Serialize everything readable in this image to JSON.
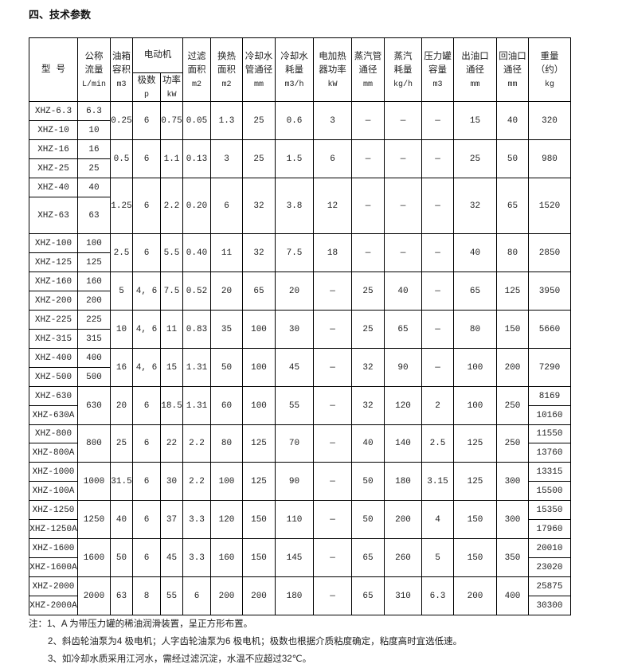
{
  "title": "四、技术参数",
  "headers": {
    "model": "型 号",
    "flow": [
      "公称",
      "流量",
      "L/min"
    ],
    "tank": [
      "油箱",
      "容积",
      "m3"
    ],
    "motor": "电动机",
    "poles": [
      "极数",
      "p"
    ],
    "power": [
      "功率",
      "kW"
    ],
    "filter": [
      "过滤",
      "面积",
      "m2"
    ],
    "heat": [
      "换热",
      "面积",
      "m2"
    ],
    "pipe": [
      "冷却水",
      "管通径",
      "mm"
    ],
    "water": [
      "冷却水",
      "耗量",
      "m3/h"
    ],
    "heater": [
      "电加热",
      "器功率",
      "kW"
    ],
    "steampipe": [
      "蒸汽管",
      "通径",
      "mm"
    ],
    "steam": [
      "蒸汽",
      "耗量",
      "kg/h"
    ],
    "tankp": [
      "压力罐",
      "容量",
      "m3"
    ],
    "outlet": [
      "出油口",
      "通径",
      "mm"
    ],
    "ret": [
      "回油口",
      "通径",
      "mm"
    ],
    "weight": [
      "重量",
      "（约）",
      "kg"
    ]
  },
  "groups": [
    {
      "models": [
        "XHZ-6.3",
        "XHZ-10"
      ],
      "flows": [
        "6.3",
        "10"
      ],
      "shared": [
        "0.25",
        "6",
        "0.75",
        "0.05",
        "1.3",
        "25",
        "0.6",
        "3",
        "—",
        "—",
        "—",
        "15",
        "40"
      ],
      "weights": [
        "320"
      ]
    },
    {
      "models": [
        "XHZ-16",
        "XHZ-25"
      ],
      "flows": [
        "16",
        "25"
      ],
      "shared": [
        "0.5",
        "6",
        "1.1",
        "0.13",
        "3",
        "25",
        "1.5",
        "6",
        "—",
        "—",
        "—",
        "25",
        "50"
      ],
      "weights": [
        "980"
      ]
    },
    {
      "models": [
        "XHZ-40",
        "XHZ-63"
      ],
      "flows": [
        "40",
        "63"
      ],
      "shared": [
        "1.25",
        "6",
        "2.2",
        "0.20",
        "6",
        "32",
        "3.8",
        "12",
        "—",
        "—",
        "—",
        "32",
        "65"
      ],
      "weights": [
        "1520"
      ]
    },
    {
      "models": [
        "XHZ-100",
        "XHZ-125"
      ],
      "flows": [
        "100",
        "125"
      ],
      "shared": [
        "2.5",
        "6",
        "5.5",
        "0.40",
        "11",
        "32",
        "7.5",
        "18",
        "—",
        "—",
        "—",
        "40",
        "80"
      ],
      "weights": [
        "2850"
      ]
    },
    {
      "models": [
        "XHZ-160",
        "XHZ-200"
      ],
      "flows": [
        "160",
        "200"
      ],
      "shared": [
        "5",
        "4, 6",
        "7.5",
        "0.52",
        "20",
        "65",
        "20",
        "—",
        "25",
        "40",
        "—",
        "65",
        "125"
      ],
      "weights": [
        "3950"
      ]
    },
    {
      "models": [
        "XHZ-225",
        "XHZ-315"
      ],
      "flows": [
        "225",
        "315"
      ],
      "shared": [
        "10",
        "4, 6",
        "11",
        "0.83",
        "35",
        "100",
        "30",
        "—",
        "25",
        "65",
        "—",
        "80",
        "150"
      ],
      "weights": [
        "5660"
      ]
    },
    {
      "models": [
        "XHZ-400",
        "XHZ-500"
      ],
      "flows": [
        "400",
        "500"
      ],
      "shared": [
        "16",
        "4, 6",
        "15",
        "1.31",
        "50",
        "100",
        "45",
        "—",
        "32",
        "90",
        "—",
        "100",
        "200"
      ],
      "weights": [
        "7290"
      ]
    },
    {
      "models": [
        "XHZ-630",
        "XHZ-630A"
      ],
      "flows": [
        "630"
      ],
      "shared": [
        "20",
        "6",
        "18.5",
        "1.31",
        "60",
        "100",
        "55",
        "—",
        "32",
        "120",
        "2",
        "100",
        "250"
      ],
      "weights": [
        "8169",
        "10160"
      ]
    },
    {
      "models": [
        "XHZ-800",
        "XHZ-800A"
      ],
      "flows": [
        "800"
      ],
      "shared": [
        "25",
        "6",
        "22",
        "2.2",
        "80",
        "125",
        "70",
        "—",
        "40",
        "140",
        "2.5",
        "125",
        "250"
      ],
      "weights": [
        "11550",
        "13760"
      ]
    },
    {
      "models": [
        "XHZ-1000",
        "XHZ-100A"
      ],
      "flows": [
        "1000"
      ],
      "shared": [
        "31.5",
        "6",
        "30",
        "2.2",
        "100",
        "125",
        "90",
        "—",
        "50",
        "180",
        "3.15",
        "125",
        "300"
      ],
      "weights": [
        "13315",
        "15500"
      ]
    },
    {
      "models": [
        "XHZ-1250",
        "XHZ-1250A"
      ],
      "flows": [
        "1250"
      ],
      "shared": [
        "40",
        "6",
        "37",
        "3.3",
        "120",
        "150",
        "110",
        "—",
        "50",
        "200",
        "4",
        "150",
        "300"
      ],
      "weights": [
        "15350",
        "17960"
      ]
    },
    {
      "models": [
        "XHZ-1600",
        "XHZ-1600A"
      ],
      "flows": [
        "1600"
      ],
      "shared": [
        "50",
        "6",
        "45",
        "3.3",
        "160",
        "150",
        "145",
        "—",
        "65",
        "260",
        "5",
        "150",
        "350"
      ],
      "weights": [
        "20010",
        "23020"
      ]
    },
    {
      "models": [
        "XHZ-2000",
        "XHZ-2000A"
      ],
      "flows": [
        "2000"
      ],
      "shared": [
        "63",
        "8",
        "55",
        "6",
        "200",
        "200",
        "180",
        "—",
        "65",
        "310",
        "6.3",
        "200",
        "400"
      ],
      "weights": [
        "25875",
        "30300"
      ]
    }
  ],
  "notes": [
    "注：1、A 为带压力罐的稀油润滑装置，呈正方形布置。",
    "2、斜齿轮油泵为4 极电机；人字齿轮油泵为6 极电机；极数也根据介质粘度确定，粘度高时宜选低速。",
    "3、如冷却水质采用江河水，需经过滤沉淀，水温不应超过32℃。"
  ]
}
